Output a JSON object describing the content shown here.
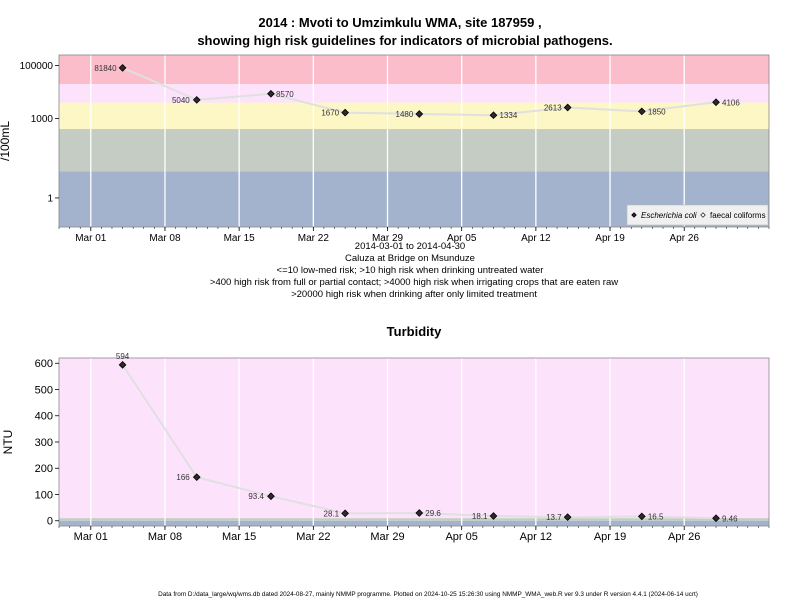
{
  "chart_data": [
    {
      "type": "line",
      "title_line1": "2014 : Mvoti to Umzimkulu WMA, site 187959 ,",
      "title_line2": "showing high risk guidelines for indicators of microbial pathogens.",
      "ylabel": "/100mL",
      "yscale": "log",
      "ylim": [
        0.08,
        250000
      ],
      "y_ticks": [
        {
          "v": 1,
          "label": "1"
        },
        {
          "v": 1000,
          "label": "1000"
        },
        {
          "v": 100000,
          "label": "100000"
        }
      ],
      "xlim": [
        "2014-02-26",
        "2014-05-04"
      ],
      "x_ticks": [
        {
          "date": "2014-03-01",
          "label": "Mar 01"
        },
        {
          "date": "2014-03-08",
          "label": "Mar 08"
        },
        {
          "date": "2014-03-15",
          "label": "Mar 15"
        },
        {
          "date": "2014-03-22",
          "label": "Mar 22"
        },
        {
          "date": "2014-03-29",
          "label": "Mar 29"
        },
        {
          "date": "2014-04-05",
          "label": "Apr 05"
        },
        {
          "date": "2014-04-12",
          "label": "Apr 12"
        },
        {
          "date": "2014-04-19",
          "label": "Apr 19"
        },
        {
          "date": "2014-04-26",
          "label": "Apr 26"
        }
      ],
      "bands": [
        {
          "from": 0.08,
          "to": 10,
          "color": "#a3b3cd"
        },
        {
          "from": 10,
          "to": 400,
          "color": "#c4ccc4"
        },
        {
          "from": 400,
          "to": 4000,
          "color": "#fcf7c4"
        },
        {
          "from": 4000,
          "to": 20000,
          "color": "#fde2fc"
        },
        {
          "from": 20000,
          "to": 250000,
          "color": "#fcbdcb"
        }
      ],
      "series": [
        {
          "name": "Escherichia coli",
          "points": [
            {
              "date": "2014-03-04",
              "value": 81840,
              "label": "81840"
            },
            {
              "date": "2014-03-11",
              "value": 5040,
              "label": "5040"
            },
            {
              "date": "2014-03-18",
              "value": 8570,
              "label": "8570"
            },
            {
              "date": "2014-03-25",
              "value": 1670,
              "label": "1670"
            },
            {
              "date": "2014-04-01",
              "value": 1480,
              "label": "1480"
            },
            {
              "date": "2014-04-08",
              "value": 1334,
              "label": "1334"
            },
            {
              "date": "2014-04-15",
              "value": 2613,
              "label": "2613"
            },
            {
              "date": "2014-04-22",
              "value": 1850,
              "label": "1850"
            },
            {
              "date": "2014-04-29",
              "value": 4106,
              "label": "4106"
            }
          ]
        },
        {
          "name": "faecal coliforms",
          "points": []
        }
      ],
      "legend_position": "bottom-right",
      "caption": [
        "2014-03-01 to 2014-04-30",
        "Caluza at Bridge on Msunduze",
        "<=10 low-med risk; >10 high risk when drinking untreated water",
        ">400 high risk from full or partial contact; >4000 high risk when irrigating crops that are eaten raw",
        ">20000 high risk when drinking after only limited treatment"
      ]
    },
    {
      "type": "line",
      "title": "Turbidity",
      "ylabel": "NTU",
      "ylim": [
        -20,
        620
      ],
      "y_ticks": [
        0,
        100,
        200,
        300,
        400,
        500,
        600
      ],
      "xlim": [
        "2014-02-26",
        "2014-05-04"
      ],
      "x_ticks": [
        {
          "date": "2014-03-01",
          "label": "Mar 01"
        },
        {
          "date": "2014-03-08",
          "label": "Mar 08"
        },
        {
          "date": "2014-03-15",
          "label": "Mar 15"
        },
        {
          "date": "2014-03-22",
          "label": "Mar 22"
        },
        {
          "date": "2014-03-29",
          "label": "Mar 29"
        },
        {
          "date": "2014-04-05",
          "label": "Apr 05"
        },
        {
          "date": "2014-04-12",
          "label": "Apr 12"
        },
        {
          "date": "2014-04-19",
          "label": "Apr 19"
        },
        {
          "date": "2014-04-26",
          "label": "Apr 26"
        }
      ],
      "bands": [
        {
          "from": -20,
          "to": 0,
          "color": "#a3b3cd"
        },
        {
          "from": 0,
          "to": 10,
          "color": "#c4ccc4"
        },
        {
          "from": 10,
          "to": 620,
          "color": "#fde2fc"
        }
      ],
      "series": [
        {
          "points": [
            {
              "date": "2014-03-04",
              "value": 594,
              "label": "594"
            },
            {
              "date": "2014-03-11",
              "value": 166,
              "label": "166"
            },
            {
              "date": "2014-03-18",
              "value": 93.4,
              "label": "93.4"
            },
            {
              "date": "2014-03-25",
              "value": 28.1,
              "label": "28.1"
            },
            {
              "date": "2014-04-01",
              "value": 29.6,
              "label": "29.6"
            },
            {
              "date": "2014-04-08",
              "value": 18.1,
              "label": "18.1"
            },
            {
              "date": "2014-04-15",
              "value": 13.7,
              "label": "13.7"
            },
            {
              "date": "2014-04-22",
              "value": 16.5,
              "label": "16.5"
            },
            {
              "date": "2014-04-29",
              "value": 9.46,
              "label": "9.46"
            }
          ]
        }
      ]
    }
  ],
  "footer": "Data from D:/data_large/wq/wms.db dated 2024-08-27, mainly NMMP programme. Plotted on 2024-10-25 15:26:30 using NMMP_WMA_web.R ver 9.3 under R version 4.4.1 (2024-06-14 ucrt)"
}
